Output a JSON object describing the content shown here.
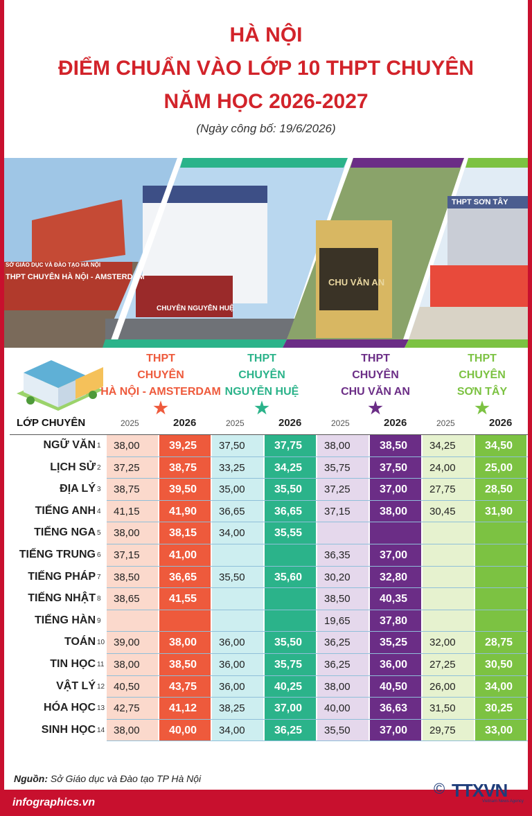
{
  "header": {
    "line1": "HÀ NỘI",
    "line2": "ĐIỂM CHUẨN VÀO LỚP 10 THPT CHUYÊN",
    "line3": "NĂM HỌC 2026-2027",
    "date": "(Ngày công bố: 19/6/2026)"
  },
  "photos": {
    "p1_sign1": "SỞ GIÁO DỤC VÀ ĐÀO TẠO HÀ NỘI",
    "p1_sign2": "THPT CHUYÊN HÀ NỘI - AMSTERDAM",
    "p2_sign": "CHUYÊN NGUYỄN HUỆ",
    "p3_sign": "CHU VĂN AN",
    "p4_sign": "THPT SƠN TÂY"
  },
  "colors": {
    "red": "#d2232a",
    "orange": "#ee5a3c",
    "orange_light": "#fbd9cc",
    "teal": "#2bb38a",
    "teal_light": "#cdeef0",
    "purple": "#6b2d86",
    "purple_light": "#e5d8ec",
    "green": "#7cc242",
    "green_light": "#e6f2cf"
  },
  "table": {
    "corner_label": "LỚP CHUYÊN",
    "schools": [
      {
        "line1": "THPT",
        "line2": "CHUYÊN",
        "line3": "HÀ NỘI - AMSTERDAM",
        "y1": "2025",
        "y2": "2026",
        "color": "#ee5a3c"
      },
      {
        "line1": "THPT",
        "line2": "CHUYÊN",
        "line3": "NGUYỄN HUỆ",
        "y1": "2025",
        "y2": "2026",
        "color": "#2bb38a"
      },
      {
        "line1": "THPT",
        "line2": "CHUYÊN",
        "line3": "CHU VĂN AN",
        "y1": "2025",
        "y2": "2026",
        "color": "#6b2d86"
      },
      {
        "line1": "THPT",
        "line2": "CHUYÊN",
        "line3": "SƠN TÂY",
        "y1": "2025",
        "y2": "2026",
        "color": "#7cc242"
      }
    ],
    "rows": [
      {
        "subject": "NGỮ VĂN",
        "n": "1",
        "v": [
          "38,00",
          "39,25",
          "37,50",
          "37,75",
          "38,00",
          "38,50",
          "34,25",
          "34,50"
        ]
      },
      {
        "subject": "LỊCH SỬ",
        "n": "2",
        "v": [
          "37,25",
          "38,75",
          "33,25",
          "34,25",
          "35,75",
          "37,50",
          "24,00",
          "25,00"
        ]
      },
      {
        "subject": "ĐỊA LÝ",
        "n": "3",
        "v": [
          "38,75",
          "39,50",
          "35,00",
          "35,50",
          "37,25",
          "37,00",
          "27,75",
          "28,50"
        ]
      },
      {
        "subject": "TIẾNG ANH",
        "n": "4",
        "v": [
          "41,15",
          "41,90",
          "36,65",
          "36,65",
          "37,15",
          "38,00",
          "30,45",
          "31,90"
        ]
      },
      {
        "subject": "TIẾNG NGA",
        "n": "5",
        "v": [
          "38,00",
          "38,15",
          "34,00",
          "35,55",
          "",
          "",
          "",
          ""
        ]
      },
      {
        "subject": "TIẾNG TRUNG",
        "n": "6",
        "v": [
          "37,15",
          "41,00",
          "",
          "",
          "36,35",
          "37,00",
          "",
          ""
        ]
      },
      {
        "subject": "TIẾNG PHÁP",
        "n": "7",
        "v": [
          "38,50",
          "36,65",
          "35,50",
          "35,60",
          "30,20",
          "32,80",
          "",
          ""
        ]
      },
      {
        "subject": "TIẾNG NHẬT",
        "n": "8",
        "v": [
          "38,65",
          "41,55",
          "",
          "",
          "38,50",
          "40,35",
          "",
          ""
        ]
      },
      {
        "subject": "TIẾNG HÀN",
        "n": "9",
        "v": [
          "",
          "",
          "",
          "",
          "19,65",
          "37,80",
          "",
          ""
        ]
      },
      {
        "subject": "TOÁN",
        "n": "10",
        "v": [
          "39,00",
          "38,00",
          "36,00",
          "35,50",
          "36,25",
          "35,25",
          "32,00",
          "28,75"
        ]
      },
      {
        "subject": "TIN HỌC",
        "n": "11",
        "v": [
          "38,00",
          "38,50",
          "36,00",
          "35,75",
          "36,25",
          "36,00",
          "27,25",
          "30,50"
        ]
      },
      {
        "subject": "VẬT LÝ",
        "n": "12",
        "v": [
          "40,50",
          "43,75",
          "36,00",
          "40,25",
          "38,00",
          "40,50",
          "26,00",
          "34,00"
        ]
      },
      {
        "subject": "HÓA HỌC",
        "n": "13",
        "v": [
          "42,75",
          "41,12",
          "38,25",
          "37,00",
          "40,00",
          "36,63",
          "31,50",
          "30,25"
        ]
      },
      {
        "subject": "SINH HỌC",
        "n": "14",
        "v": [
          "38,00",
          "40,00",
          "34,00",
          "36,25",
          "35,50",
          "37,00",
          "29,75",
          "33,00"
        ]
      }
    ]
  },
  "footer": {
    "source_label": "Nguồn:",
    "source_text": "Sở Giáo dục và Đào tạo TP Hà Nội",
    "site": "infographics.vn",
    "copyright": "©",
    "logo": "TTXVN",
    "logo_sub": "Vietnam News Agency"
  }
}
